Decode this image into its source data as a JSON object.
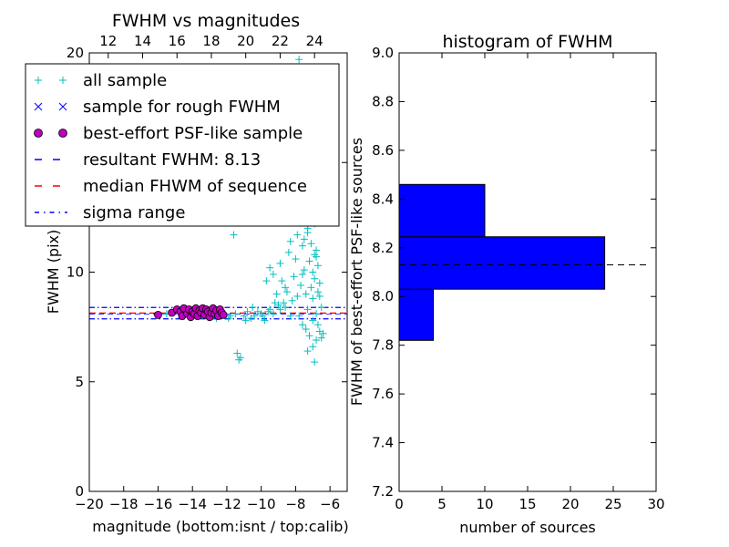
{
  "chart_data": [
    {
      "type": "scatter",
      "title": "FWHM vs magnitudes",
      "xlabel": "magnitude (bottom:isnt / top:calib)",
      "ylabel": "FWHM (pix)",
      "xlim": [
        -20,
        -5
      ],
      "ylim": [
        0,
        20
      ],
      "x_ticks": [
        "−20",
        "−18",
        "−16",
        "−14",
        "−12",
        "−10",
        "−8",
        "−6"
      ],
      "x_tick_values": [
        -20,
        -18,
        -16,
        -14,
        -12,
        -10,
        -8,
        -6
      ],
      "y_ticks": [
        "0",
        "5",
        "10",
        "15",
        "20"
      ],
      "y_tick_values": [
        0,
        5,
        10,
        15,
        20
      ],
      "top_x_ticks": [
        "12",
        "14",
        "16",
        "18",
        "20",
        "22",
        "24"
      ],
      "top_x_tick_values": [
        12,
        14,
        16,
        18,
        20,
        22,
        24
      ],
      "top_xlim": [
        10.9,
        25.9
      ],
      "grid": false,
      "legend_position": "top-left",
      "legend": [
        {
          "label": "all sample",
          "marker": "plus",
          "color": "#00bfbf"
        },
        {
          "label": "sample for rough FWHM",
          "marker": "x",
          "color": "#0000ff"
        },
        {
          "label": "best-effort PSF-like sample",
          "marker": "circle",
          "color": "#bf00bf"
        },
        {
          "label": "resultant FWHM: 8.13",
          "line": "dashed",
          "color": "#0000ff"
        },
        {
          "label": "median FHWM of sequence",
          "line": "dashed",
          "color": "#ff0000"
        },
        {
          "label": "sigma range",
          "line": "dashdot",
          "color": "#0000ff"
        }
      ],
      "resultant_fwhm": 8.13,
      "median_fwhm": 8.13,
      "sigma_range": [
        7.87,
        8.39
      ],
      "series": [
        {
          "name": "all sample",
          "color": "#00bfbf",
          "marker": "plus",
          "points": [
            [
              -11.9,
              7.9
            ],
            [
              -11.6,
              11.7
            ],
            [
              -11.4,
              6.3
            ],
            [
              -11.3,
              6.0
            ],
            [
              -11.2,
              6.1
            ],
            [
              -11.5,
              8.1
            ],
            [
              -11.0,
              8.0
            ],
            [
              -10.8,
              8.2
            ],
            [
              -10.6,
              7.9
            ],
            [
              -10.4,
              8.0
            ],
            [
              -10.2,
              8.2
            ],
            [
              -10.0,
              8.1
            ],
            [
              -9.9,
              8.0
            ],
            [
              -9.8,
              7.8
            ],
            [
              -9.6,
              8.2
            ],
            [
              -9.5,
              8.3
            ],
            [
              -9.7,
              9.6
            ],
            [
              -9.5,
              10.2
            ],
            [
              -9.3,
              9.9
            ],
            [
              -9.2,
              8.6
            ],
            [
              -9.1,
              9.0
            ],
            [
              -9.0,
              8.5
            ],
            [
              -8.9,
              10.4
            ],
            [
              -8.8,
              9.6
            ],
            [
              -8.7,
              8.6
            ],
            [
              -8.6,
              9.3
            ],
            [
              -8.5,
              9.1
            ],
            [
              -8.4,
              10.9
            ],
            [
              -8.3,
              11.4
            ],
            [
              -8.2,
              8.7
            ],
            [
              -8.1,
              9.8
            ],
            [
              -8.0,
              10.6
            ],
            [
              -7.9,
              12.3
            ],
            [
              -7.9,
              8.9
            ],
            [
              -7.8,
              13.0
            ],
            [
              -7.7,
              9.4
            ],
            [
              -7.6,
              11.2
            ],
            [
              -7.5,
              12.6
            ],
            [
              -7.5,
              10.1
            ],
            [
              -7.4,
              13.5
            ],
            [
              -7.4,
              9.0
            ],
            [
              -7.3,
              11.8
            ],
            [
              -7.3,
              8.3
            ],
            [
              -7.2,
              12.9
            ],
            [
              -7.2,
              10.5
            ],
            [
              -7.1,
              11.3
            ],
            [
              -7.1,
              9.3
            ],
            [
              -7.0,
              10.0
            ],
            [
              -7.0,
              8.8
            ],
            [
              -6.9,
              12.2
            ],
            [
              -6.9,
              9.7
            ],
            [
              -6.8,
              11.0
            ],
            [
              -6.8,
              8.1
            ],
            [
              -6.7,
              10.3
            ],
            [
              -6.7,
              7.6
            ],
            [
              -6.6,
              9.5
            ],
            [
              -6.6,
              7.3
            ],
            [
              -6.5,
              8.4
            ],
            [
              -6.5,
              7.0
            ],
            [
              -6.4,
              7.2
            ],
            [
              -7.2,
              7.1
            ],
            [
              -7.0,
              6.6
            ],
            [
              -6.9,
              5.9
            ],
            [
              -7.4,
              7.4
            ],
            [
              -7.6,
              7.6
            ],
            [
              -7.8,
              8.0
            ],
            [
              -7.0,
              7.8
            ],
            [
              -6.8,
              6.9
            ],
            [
              -7.3,
              6.4
            ],
            [
              -6.6,
              8.9
            ],
            [
              -7.9,
              11.7
            ],
            [
              -7.6,
              13.6
            ],
            [
              -7.5,
              14.1
            ],
            [
              -7.3,
              14.7
            ],
            [
              -7.2,
              14.3
            ],
            [
              -7.1,
              15.2
            ],
            [
              -7.4,
              15.6
            ],
            [
              -7.7,
              14.0
            ],
            [
              -7.0,
              13.8
            ],
            [
              -6.9,
              14.9
            ],
            [
              -7.8,
              19.7
            ],
            [
              -7.3,
              12.0
            ],
            [
              -7.5,
              11.5
            ],
            [
              -7.1,
              12.5
            ],
            [
              -6.8,
              10.7
            ],
            [
              -6.7,
              9.1
            ],
            [
              -6.9,
              10.8
            ],
            [
              -7.6,
              9.9
            ],
            [
              -8.6,
              8.4
            ],
            [
              -8.3,
              8.0
            ],
            [
              -8.9,
              8.3
            ],
            [
              -9.3,
              8.1
            ],
            [
              -10.5,
              8.4
            ],
            [
              -10.9,
              7.8
            ],
            [
              -11.8,
              8.0
            ],
            [
              -12.3,
              8.1
            ],
            [
              -12.6,
              7.9
            ],
            [
              -13.0,
              8.2
            ],
            [
              -13.4,
              8.0
            ],
            [
              -13.8,
              8.1
            ],
            [
              -14.2,
              8.3
            ],
            [
              -14.6,
              8.0
            ],
            [
              -15.0,
              8.2
            ],
            [
              -15.5,
              8.1
            ]
          ]
        },
        {
          "name": "best-effort PSF-like sample",
          "color": "#bf00bf",
          "marker": "circle",
          "points": [
            [
              -16.0,
              8.05
            ],
            [
              -15.2,
              8.15
            ],
            [
              -14.9,
              8.3
            ],
            [
              -14.7,
              8.2
            ],
            [
              -14.6,
              8.0
            ],
            [
              -14.5,
              8.35
            ],
            [
              -14.3,
              8.1
            ],
            [
              -14.2,
              8.3
            ],
            [
              -14.1,
              7.95
            ],
            [
              -14.0,
              8.2
            ],
            [
              -13.9,
              8.1
            ],
            [
              -13.8,
              8.35
            ],
            [
              -13.7,
              8.0
            ],
            [
              -13.6,
              8.25
            ],
            [
              -13.5,
              8.15
            ],
            [
              -13.4,
              8.35
            ],
            [
              -13.3,
              8.05
            ],
            [
              -13.2,
              8.3
            ],
            [
              -13.1,
              8.2
            ],
            [
              -13.0,
              7.95
            ],
            [
              -12.9,
              8.15
            ],
            [
              -12.8,
              8.35
            ],
            [
              -12.7,
              8.1
            ],
            [
              -12.6,
              8.25
            ],
            [
              -12.5,
              8.0
            ],
            [
              -12.4,
              8.3
            ],
            [
              -12.3,
              8.15
            ],
            [
              -12.2,
              8.05
            ]
          ]
        }
      ]
    },
    {
      "type": "bar",
      "orientation": "horizontal",
      "title": "histogram of FWHM",
      "xlabel": "number of sources",
      "ylabel": "FWHM of best-effort PSF-like sources",
      "xlim": [
        0,
        30
      ],
      "ylim": [
        7.2,
        9.0
      ],
      "x_ticks": [
        "0",
        "5",
        "10",
        "15",
        "20",
        "25",
        "30"
      ],
      "x_tick_values": [
        0,
        5,
        10,
        15,
        20,
        25,
        30
      ],
      "y_ticks": [
        "7.2",
        "7.4",
        "7.6",
        "7.8",
        "8.0",
        "8.2",
        "8.4",
        "8.6",
        "8.8",
        "9.0"
      ],
      "y_tick_values": [
        7.2,
        7.4,
        7.6,
        7.8,
        8.0,
        8.2,
        8.4,
        8.6,
        8.8,
        9.0
      ],
      "bars_color": "#0000ff",
      "bins": [
        {
          "from": 7.82,
          "to": 8.03,
          "count": 4
        },
        {
          "from": 8.03,
          "to": 8.245,
          "count": 24
        },
        {
          "from": 8.245,
          "to": 8.46,
          "count": 10
        }
      ],
      "reference_line": 8.13
    }
  ]
}
